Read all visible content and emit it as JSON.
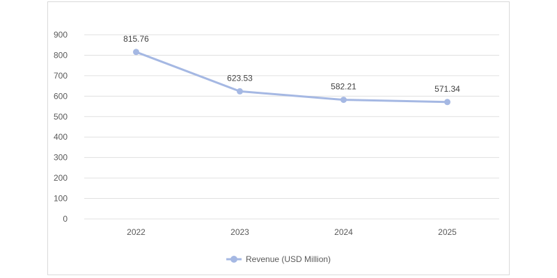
{
  "chart_data": {
    "type": "line",
    "title": "",
    "xlabel": "",
    "ylabel": "",
    "categories": [
      "2022",
      "2023",
      "2024",
      "2025"
    ],
    "series": [
      {
        "name": "Revenue (USD Million)",
        "values": [
          815.76,
          623.53,
          582.21,
          571.34
        ],
        "data_labels": [
          "815.76",
          "623.53",
          "582.21",
          "571.34"
        ],
        "color": "#a5b8e3"
      }
    ],
    "ylim": [
      0,
      900
    ],
    "yticks": [
      "0",
      "100",
      "200",
      "300",
      "400",
      "500",
      "600",
      "700",
      "800",
      "900"
    ],
    "grid": true,
    "gridline_color": "#e0e0e0",
    "legend_position": "bottom"
  }
}
